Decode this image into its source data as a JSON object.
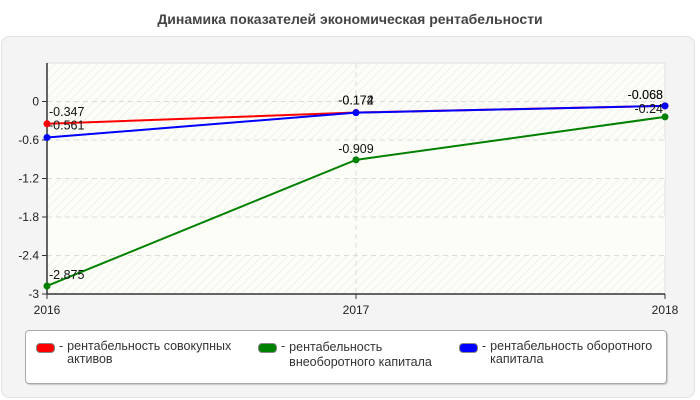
{
  "title": "Динамика показателей экономическая рентабельности",
  "chart_data": {
    "type": "line",
    "title": "Динамика показателей экономическая рентабельности",
    "xlabel": "",
    "ylabel": "",
    "categories": [
      "2016",
      "2017",
      "2018"
    ],
    "ylim": [
      -3,
      0.6
    ],
    "yticks": [
      "0",
      "-0.6",
      "-1.2",
      "-1.8",
      "-2.4",
      "-3"
    ],
    "grid": true,
    "legend_position": "bottom",
    "series": [
      {
        "name": "рентабельность совокупных активов",
        "color": "#ff0000",
        "values": [
          -0.347,
          -0.172,
          -0.068
        ],
        "labels": [
          "-0.347",
          "-0.172",
          "-0.068"
        ]
      },
      {
        "name": "рентабельность внеоборотного капитала",
        "color": "#008000",
        "values": [
          -2.875,
          -0.909,
          -0.24
        ],
        "labels": [
          "-2.875",
          "-0.909",
          "-0.24"
        ]
      },
      {
        "name": "рентабельность оборотного капитала",
        "color": "#0000ff",
        "values": [
          -0.561,
          -0.174,
          -0.068
        ],
        "labels": [
          "-0.561",
          "-0.174",
          "-0.068"
        ]
      }
    ]
  },
  "legend": {
    "items": [
      {
        "dash": "-",
        "line1": "рентабельность совокупных",
        "line2": "активов",
        "color": "#ff0000"
      },
      {
        "dash": "-",
        "line1": "рентабельность",
        "line2": "внеоборотного капитала",
        "color": "#008000"
      },
      {
        "dash": "-",
        "line1": "рентабельность оборотного",
        "line2": "капитала",
        "color": "#0000ff"
      }
    ]
  }
}
